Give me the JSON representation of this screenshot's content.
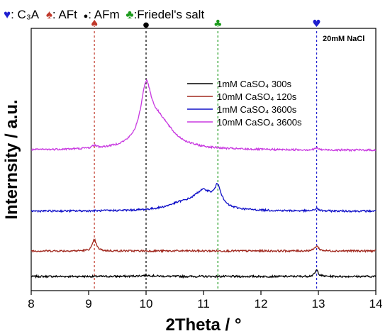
{
  "chart_data": {
    "type": "line",
    "xlabel": "2Theta / °",
    "ylabel": "Internsity / a.u.",
    "xlim": [
      8,
      14
    ],
    "xticks": [
      "8",
      "9",
      "10",
      "11",
      "12",
      "13",
      "14"
    ],
    "annotation": "20mM NaCl",
    "phase_key": [
      {
        "symbol": "♥",
        "label": ": C₃A",
        "color": "#1f1fcf"
      },
      {
        "symbol": "♠",
        "label": ": AFt",
        "color": "#c0392b"
      },
      {
        "symbol": "●",
        "label": ": AFm",
        "color": "#000000"
      },
      {
        "symbol": "♣",
        "label": ":Friedel's salt",
        "color": "#1a9a1a"
      }
    ],
    "reference_lines": [
      {
        "x": 9.1,
        "symbol": "♠",
        "color": "#c0392b"
      },
      {
        "x": 10.0,
        "symbol": "●",
        "color": "#000000"
      },
      {
        "x": 11.25,
        "symbol": "♣",
        "color": "#1a9a1a"
      },
      {
        "x": 12.97,
        "symbol": "♥",
        "color": "#1f1fcf"
      }
    ],
    "legend_placement": "upper-right",
    "series": [
      {
        "name": "1mM CaSO₄ 300s",
        "color": "#000000",
        "baseline": 10,
        "peaks": [
          {
            "x": 10.0,
            "height": 1.5,
            "width": 0.15
          },
          {
            "x": 12.97,
            "height": 9,
            "width": 0.035
          }
        ]
      },
      {
        "name": "10mM CaSO₄ 120s",
        "color": "#a0281e",
        "baseline": 46,
        "peaks": [
          {
            "x": 9.1,
            "height": 16,
            "width": 0.04
          },
          {
            "x": 12.97,
            "height": 7,
            "width": 0.04
          }
        ]
      },
      {
        "name": "1mM CaSO₄ 3600s",
        "color": "#1010c8",
        "baseline": 102,
        "peaks": [
          {
            "x": 11.25,
            "height": 26,
            "width": 0.07
          },
          {
            "x": 11.0,
            "height": 26,
            "width": 0.22
          },
          {
            "x": 10.6,
            "height": 8,
            "width": 0.3
          },
          {
            "x": 12.97,
            "height": 4,
            "width": 0.03
          }
        ]
      },
      {
        "name": "10mM CaSO₄ 3600s",
        "color": "#c838e0",
        "baseline": 188,
        "peaks": [
          {
            "x": 10.0,
            "height": 72,
            "width": 0.11
          },
          {
            "x": 10.22,
            "height": 40,
            "width": 0.3
          },
          {
            "x": 9.1,
            "height": 4,
            "width": 0.04
          },
          {
            "x": 12.97,
            "height": 3,
            "width": 0.03
          }
        ]
      }
    ]
  }
}
